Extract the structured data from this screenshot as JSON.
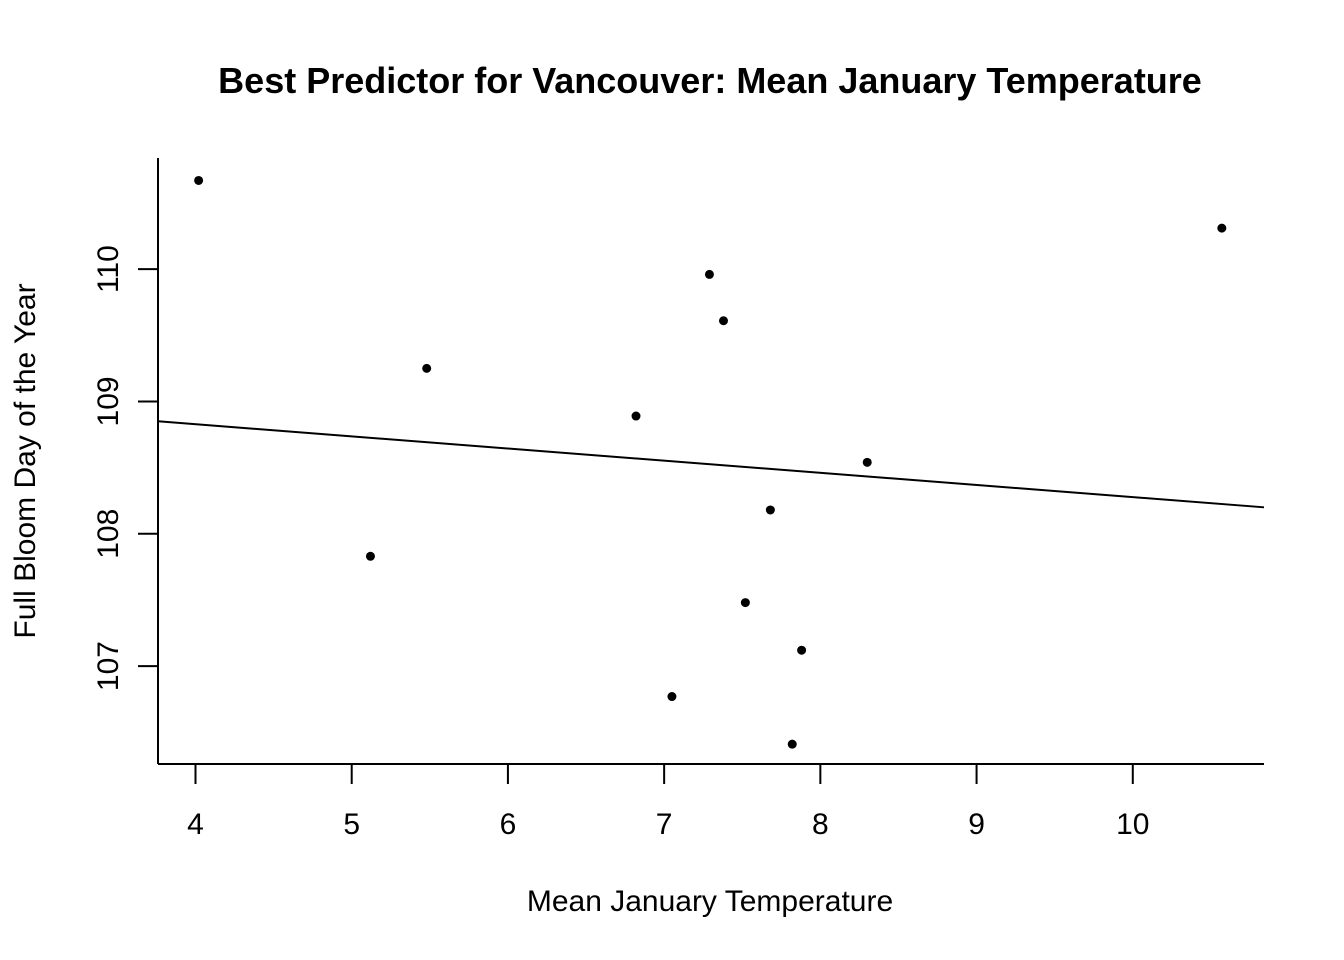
{
  "chart_data": {
    "type": "scatter",
    "title": "Best Predictor for Vancouver: Mean January Temperature",
    "xlabel": "Mean January Temperature",
    "ylabel": "Full Bloom Day of the Year",
    "xlim": [
      3.76,
      10.84
    ],
    "ylim": [
      106.26,
      110.84
    ],
    "x_ticks": [
      4,
      5,
      6,
      7,
      8,
      9,
      10
    ],
    "y_ticks": [
      107,
      108,
      109,
      110
    ],
    "grid": false,
    "legend": "none",
    "points": [
      {
        "x": 4.02,
        "y": 110.67
      },
      {
        "x": 10.57,
        "y": 110.31
      },
      {
        "x": 7.29,
        "y": 109.96
      },
      {
        "x": 7.38,
        "y": 109.61
      },
      {
        "x": 5.48,
        "y": 109.25
      },
      {
        "x": 6.82,
        "y": 108.89
      },
      {
        "x": 8.3,
        "y": 108.54
      },
      {
        "x": 7.68,
        "y": 108.18
      },
      {
        "x": 5.12,
        "y": 107.83
      },
      {
        "x": 7.52,
        "y": 107.48
      },
      {
        "x": 7.88,
        "y": 107.12
      },
      {
        "x": 7.05,
        "y": 106.77
      },
      {
        "x": 7.82,
        "y": 106.41
      }
    ],
    "fit_line": {
      "x": [
        3.76,
        10.84
      ],
      "y": [
        108.85,
        108.2
      ]
    }
  }
}
